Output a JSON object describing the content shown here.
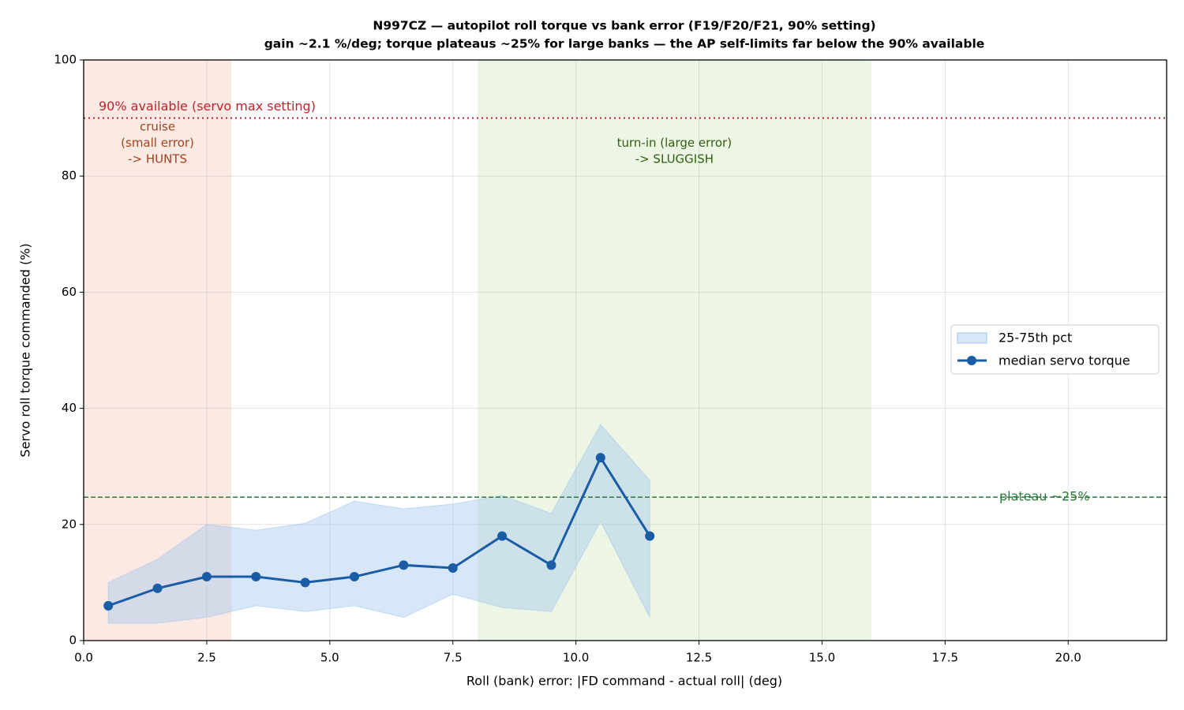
{
  "chart_data": {
    "type": "line",
    "title": "N997CZ — autopilot roll torque vs bank error (F19/F20/F21, 90% setting)",
    "subtitle": "gain ~2.1 %/deg; torque plateaus ~25% for large banks — the AP self-limits far below the 90% available",
    "x_label": "Roll (bank) error: |FD command - actual roll|  (deg)",
    "y_label": "Servo roll torque commanded (%)",
    "x": [
      0.5,
      1.5,
      2.5,
      3.5,
      4.5,
      5.5,
      6.5,
      7.5,
      8.5,
      9.5,
      10.5,
      11.5
    ],
    "series": [
      {
        "name": "median servo torque",
        "color": "#1a5ca6",
        "values": [
          6,
          9,
          11,
          11,
          10,
          11,
          13,
          12.5,
          18,
          13,
          31.5,
          18
        ]
      }
    ],
    "band": {
      "name": "25-75th pct",
      "color": "#9cc2ee",
      "lower": [
        3,
        3,
        4,
        6,
        5,
        6,
        4,
        8,
        5.7,
        5,
        20.5,
        4
      ],
      "upper": [
        10,
        14,
        20,
        19,
        20.2,
        24,
        22.7,
        23.5,
        25,
        21.9,
        37.2,
        27.6
      ]
    },
    "regions": [
      {
        "xlim": [
          0,
          3
        ],
        "color": "#f3b8a4",
        "label_color": "#a3411f",
        "label": [
          "cruise",
          "(small error)",
          "-> HUNTS"
        ]
      },
      {
        "xlim": [
          8,
          16
        ],
        "color": "#c5dea9",
        "label_color": "#2f5f10",
        "label": [
          "turn-in (large error)",
          "-> SLUGGISH"
        ]
      }
    ],
    "hlines": [
      {
        "value": 90,
        "color": "#c4202c",
        "style": "dotted",
        "label": "90% available (servo max setting)",
        "label_side": "left"
      },
      {
        "value": 24.7,
        "color": "#2a7d3a",
        "style": "dashed",
        "label": "plateau ~25%",
        "label_side": "right"
      }
    ],
    "xlim": [
      0,
      22
    ],
    "ylim": [
      0,
      100
    ],
    "xticks": [
      {
        "value": 0,
        "label": "0.0"
      },
      2.5,
      {
        "value": 5,
        "label": "5.0"
      },
      7.5,
      {
        "value": 10,
        "label": "10.0"
      },
      12.5,
      {
        "value": 15,
        "label": "15.0"
      },
      17.5,
      {
        "value": 20,
        "label": "20.0"
      }
    ],
    "yticks": [
      0,
      20,
      40,
      60,
      80,
      100
    ],
    "grid": true,
    "legend": "center right"
  }
}
